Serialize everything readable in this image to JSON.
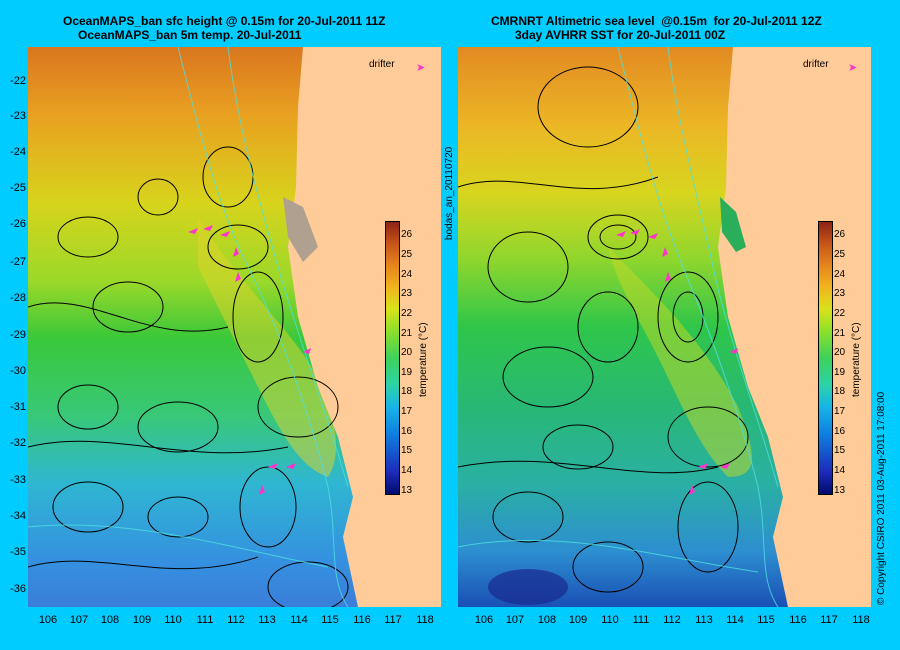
{
  "left": {
    "title_line1": "OceanMAPS_ban sfc height @ 0.15m for 20-Jul-2011 11Z",
    "title_line2": "OceanMAPS_ban 5m temp. 20-Jul-2011",
    "legend_label": "drifter",
    "colorbar_title": "temperature (°C)"
  },
  "right": {
    "title_line1": "CMRNRT Altimetric sea level  @0.15m  for 20-Jul-2011 12Z",
    "title_line2": "3day AVHRR SST for 20-Jul-2011 00Z",
    "legend_label": "drifter",
    "colorbar_title": "temperature (°C)"
  },
  "side_text": "bodas_an_20110720",
  "copyright": "© Copyright CSIRO 2011   03-Aug-2011 17:08:00",
  "y_ticks": [
    "-22",
    "-23",
    "-24",
    "-25",
    "-26",
    "-27",
    "-28",
    "-29",
    "-30",
    "-31",
    "-32",
    "-33",
    "-34",
    "-35",
    "-36"
  ],
  "x_ticks": [
    "106",
    "107",
    "108",
    "109",
    "110",
    "111",
    "112",
    "113",
    "114",
    "115",
    "116",
    "117",
    "118"
  ],
  "colorbar_ticks": [
    "26",
    "25",
    "24",
    "23",
    "22",
    "21",
    "20",
    "19",
    "18",
    "17",
    "16",
    "15",
    "14",
    "13"
  ],
  "colors": {
    "background": "#00ccff",
    "land": "#ffcc99",
    "drifter": "#ff33cc"
  }
}
